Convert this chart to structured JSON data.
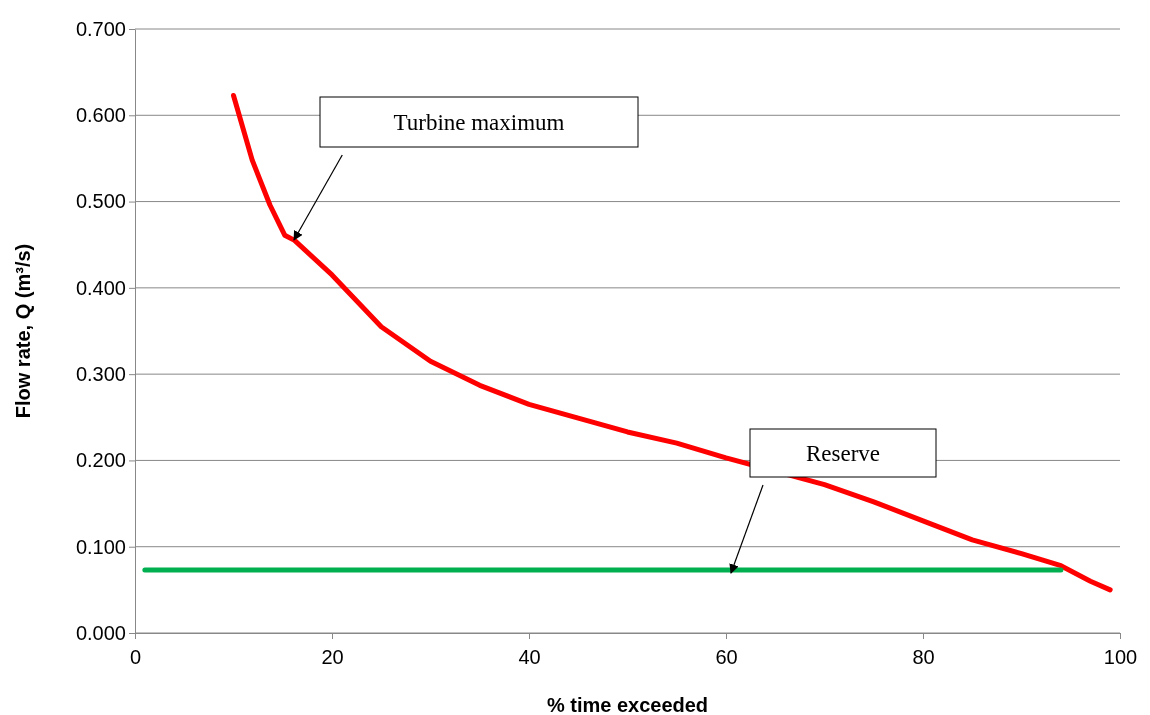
{
  "chart_data": {
    "type": "line",
    "xlabel": "% time exceeded",
    "ylabel": "Flow rate, Q (m³/s)",
    "xlim": [
      0,
      100
    ],
    "xticks": [
      0,
      20,
      40,
      60,
      80,
      100
    ],
    "ylim": [
      0,
      0.7
    ],
    "yticks": [
      {
        "value": 0,
        "label": "0.000"
      },
      {
        "value": 0.1,
        "label": "0.100"
      },
      {
        "value": 0.2,
        "label": "0.200"
      },
      {
        "value": 0.3,
        "label": "0.300"
      },
      {
        "value": 0.4,
        "label": "0.400"
      },
      {
        "value": 0.5,
        "label": "0.500"
      },
      {
        "value": 0.6,
        "label": "0.600"
      },
      {
        "value": 0.7,
        "label": "0.700"
      }
    ],
    "grid": "y",
    "marker": "none",
    "line_style": "solid",
    "series": [
      {
        "color": "#ff0000",
        "x": [
          10,
          11.9,
          13.7,
          15.2,
          16.2,
          20,
          25,
          30,
          35,
          40,
          45,
          50,
          55,
          60,
          70,
          75,
          80,
          85,
          90,
          94,
          97,
          99
        ],
        "values": [
          0.623,
          0.548,
          0.496,
          0.461,
          0.455,
          0.415,
          0.355,
          0.315,
          0.287,
          0.265,
          0.249,
          0.233,
          0.22,
          0.203,
          0.172,
          0.152,
          0.13,
          0.108,
          0.092,
          0.078,
          0.06,
          0.05
        ]
      },
      {
        "color": "#00b050",
        "x": [
          1,
          94
        ],
        "values": [
          0.073,
          0.073
        ]
      }
    ],
    "annotations": [
      "Turbine maximum",
      "Reserve"
    ]
  }
}
